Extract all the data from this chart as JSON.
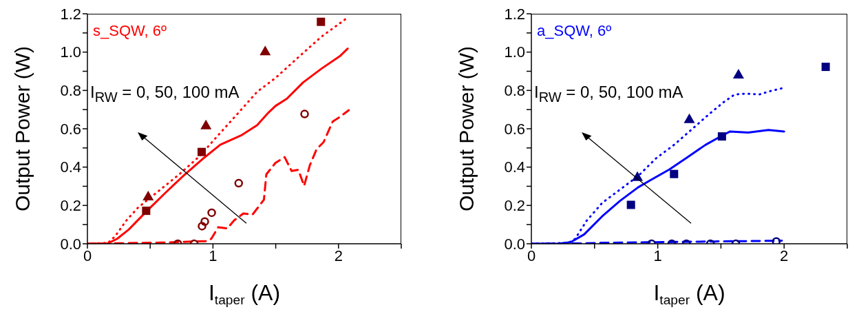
{
  "chart_data": [
    {
      "type": "line",
      "title": "s_SQW, 6º",
      "xlabel": "I$_{taper}$ (A)",
      "ylabel": "Output Power (W)",
      "annotations": [
        "I$_{RW}$ = 0, 50, 100 mA"
      ],
      "xlim": [
        0,
        2.5
      ],
      "ylim": [
        0,
        1.2
      ],
      "xticks": [
        0,
        {
          "value": 0.5,
          "label": null
        },
        1,
        {
          "value": 1.5,
          "label": null
        },
        2,
        {
          "value": 2.5,
          "label": null
        }
      ],
      "yticks": [
        {
          "value": 0,
          "label": "0.0"
        },
        {
          "value": 0.1,
          "label": null
        },
        0.2,
        {
          "value": 0.3,
          "label": null
        },
        0.4,
        {
          "value": 0.5,
          "label": null
        },
        0.6,
        {
          "value": 0.7,
          "label": null
        },
        0.8,
        {
          "value": 0.9,
          "label": null
        },
        {
          "value": 1,
          "label": "1.0"
        },
        {
          "value": 1.1,
          "label": null
        },
        1.2
      ],
      "grid": false,
      "legend": false,
      "series": [
        {
          "type": "line",
          "color": "#ff0000",
          "line_style": "solid",
          "marker": "none",
          "x": [
            0,
            0.164,
            0.237,
            0.329,
            0.475,
            0.621,
            0.767,
            0.913,
            1.059,
            1.224,
            1.352,
            1.443,
            1.498,
            1.589,
            1.717,
            1.863,
            2.009,
            2.073
          ],
          "values": [
            0,
            0.002,
            0.026,
            0.074,
            0.172,
            0.266,
            0.356,
            0.44,
            0.517,
            0.565,
            0.619,
            0.685,
            0.719,
            0.757,
            0.841,
            0.913,
            0.978,
            1.018
          ]
        },
        {
          "type": "line",
          "color": "#ff0000",
          "line_style": "dotted",
          "marker": "none",
          "x": [
            0,
            0.164,
            0.219,
            0.311,
            0.402,
            0.584,
            0.731,
            0.895,
            1.041,
            1.205,
            1.352,
            1.498,
            1.68,
            1.863,
            2.064
          ],
          "values": [
            0,
            0.005,
            0.038,
            0.122,
            0.188,
            0.284,
            0.362,
            0.458,
            0.566,
            0.685,
            0.793,
            0.865,
            0.973,
            1.08,
            1.176
          ]
        },
        {
          "type": "line",
          "color": "#ff0000",
          "line_style": "dashed",
          "marker": "none",
          "x": [
            0,
            0.584,
            0.95,
            0.987,
            1.041,
            1.114,
            1.169,
            1.242,
            1.315,
            1.406,
            1.425,
            1.498,
            1.571,
            1.626,
            1.68,
            1.726,
            1.772,
            1.826,
            1.881,
            1.954,
            2.009,
            2.082
          ],
          "values": [
            0,
            0.006,
            0.014,
            0.026,
            0.086,
            0.08,
            0.122,
            0.158,
            0.152,
            0.23,
            0.362,
            0.422,
            0.452,
            0.38,
            0.386,
            0.302,
            0.41,
            0.494,
            0.53,
            0.638,
            0.661,
            0.697
          ]
        },
        {
          "type": "scatter",
          "color": "#800000",
          "marker": "square",
          "x": [
            0.468,
            0.91,
            1.86
          ],
          "values": [
            0.172,
            0.479,
            1.158
          ]
        },
        {
          "type": "scatter",
          "color": "#800000",
          "marker": "triangle",
          "x": [
            0.484,
            0.944,
            1.416
          ],
          "values": [
            0.248,
            0.619,
            1.005
          ]
        },
        {
          "type": "scatter",
          "color": "#800000",
          "marker": "circle",
          "x": [
            0.72,
            0.85,
            0.913,
            0.935,
            0.99,
            1.205,
            1.73
          ],
          "values": [
            0,
            0,
            0.092,
            0.116,
            0.162,
            0.316,
            0.677
          ]
        }
      ]
    },
    {
      "type": "line",
      "title": "a_SQW, 6º",
      "xlabel": "I$_{taper}$ (A)",
      "ylabel": "Output Power (W)",
      "annotations": [
        "I$_{RW}$ = 0, 50, 100 mA"
      ],
      "xlim": [
        0,
        2.5
      ],
      "ylim": [
        0,
        1.2
      ],
      "xticks": [
        0,
        {
          "value": 0.5,
          "label": null
        },
        1,
        {
          "value": 1.5,
          "label": null
        },
        2,
        {
          "value": 2.5,
          "label": null
        }
      ],
      "yticks": [
        {
          "value": 0,
          "label": "0.0"
        },
        {
          "value": 0.1,
          "label": null
        },
        0.2,
        {
          "value": 0.3,
          "label": null
        },
        0.4,
        {
          "value": 0.5,
          "label": null
        },
        0.6,
        {
          "value": 0.7,
          "label": null
        },
        0.8,
        {
          "value": 0.9,
          "label": null
        },
        {
          "value": 1,
          "label": "1.0"
        },
        {
          "value": 1.1,
          "label": null
        },
        1.2
      ],
      "grid": false,
      "legend": false,
      "series": [
        {
          "type": "line",
          "color": "#0000ff",
          "line_style": "solid",
          "marker": "none",
          "x": [
            0,
            0.204,
            0.311,
            0.418,
            0.56,
            0.702,
            0.844,
            0.951,
            1.093,
            1.236,
            1.378,
            1.511,
            1.573,
            1.716,
            1.876,
            2.0
          ],
          "values": [
            0,
            0,
            0.008,
            0.049,
            0.143,
            0.224,
            0.294,
            0.335,
            0.388,
            0.452,
            0.516,
            0.565,
            0.586,
            0.58,
            0.594,
            0.586
          ]
        },
        {
          "type": "line",
          "color": "#0000ff",
          "line_style": "dotted",
          "marker": "none",
          "x": [
            0,
            0.293,
            0.347,
            0.436,
            0.56,
            0.702,
            0.844,
            0.987,
            1.129,
            1.271,
            1.413,
            1.52,
            1.609,
            1.698,
            1.804,
            1.893,
            2.0
          ],
          "values": [
            0,
            0.005,
            0.026,
            0.119,
            0.213,
            0.283,
            0.353,
            0.446,
            0.516,
            0.598,
            0.68,
            0.738,
            0.779,
            0.783,
            0.779,
            0.797,
            0.814
          ]
        },
        {
          "type": "line",
          "color": "#0000ff",
          "line_style": "dashed",
          "marker": "none",
          "x": [
            0,
            0.382,
            0.56,
            0.916,
            1.449,
            1.982
          ],
          "values": [
            0,
            0.002,
            0.005,
            0.008,
            0.012,
            0.016
          ]
        },
        {
          "type": "scatter",
          "color": "#000080",
          "marker": "square",
          "x": [
            0.788,
            1.129,
            1.508,
            2.329
          ],
          "values": [
            0.203,
            0.364,
            0.56,
            0.923
          ]
        },
        {
          "type": "scatter",
          "color": "#000080",
          "marker": "triangle",
          "x": [
            0.839,
            1.25,
            1.639
          ],
          "values": [
            0.349,
            0.651,
            0.884
          ]
        },
        {
          "type": "scatter",
          "color": "#000080",
          "marker": "circle",
          "x": [
            0.951,
            1.111,
            1.227,
            1.417,
            1.618,
            1.938
          ],
          "values": [
            0,
            0,
            0,
            0,
            0,
            0.012
          ]
        }
      ]
    }
  ]
}
